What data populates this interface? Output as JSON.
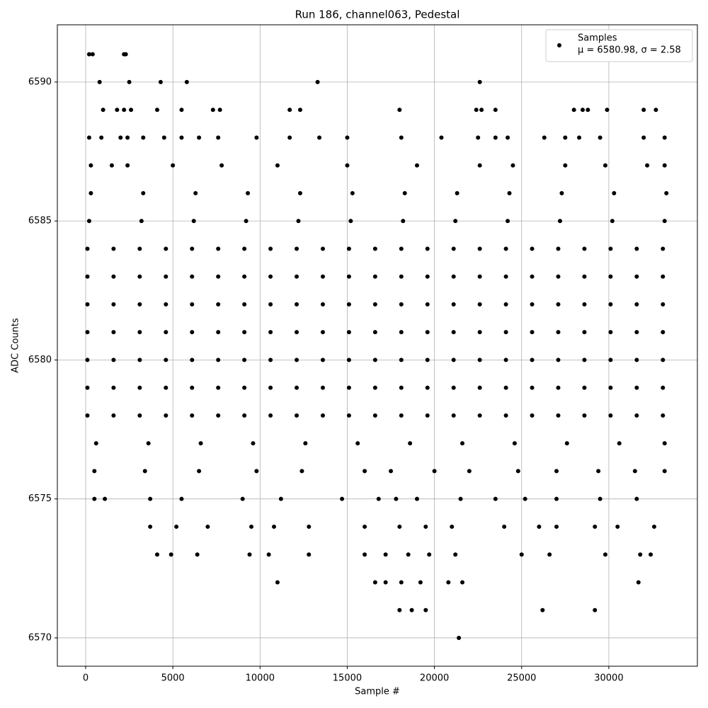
{
  "chart_data": {
    "type": "scatter",
    "title": "Run 186, channel063, Pedestal",
    "x_label": "Sample #",
    "y_label": "ADC Counts",
    "xlim": [
      -1624,
      35078
    ],
    "ylim": [
      6568.98,
      6592.06
    ],
    "xticks": [
      0,
      5000,
      10000,
      15000,
      20000,
      25000,
      30000
    ],
    "yticks": [
      6570,
      6575,
      6580,
      6585,
      6590
    ],
    "grid": true,
    "legend_position": "upper right",
    "legend_note": "μ = 6580.98, σ = 2.58",
    "series": [
      {
        "name": "Samples",
        "color": "#000000",
        "x": [
          100,
          1600,
          3100,
          4600,
          6100,
          7600,
          9100,
          10600,
          12100,
          13600,
          15100,
          16600,
          18100,
          19600,
          21100,
          22600,
          24100,
          25600,
          27100,
          28600,
          30100,
          31600,
          33100,
          100,
          1600,
          3100,
          4600,
          6100,
          7600,
          9100,
          10600,
          12100,
          13600,
          15100,
          16600,
          18100,
          19600,
          21100,
          22600,
          24100,
          25600,
          27100,
          28600,
          30100,
          31600,
          33100,
          100,
          1600,
          3100,
          4600,
          6100,
          7600,
          9100,
          10600,
          12100,
          13600,
          15100,
          16600,
          18100,
          19600,
          21100,
          22600,
          24100,
          25600,
          27100,
          28600,
          30100,
          31600,
          33100,
          100,
          1600,
          3100,
          4600,
          6100,
          7600,
          9100,
          10600,
          12100,
          13600,
          15100,
          16600,
          18100,
          19600,
          21100,
          22600,
          24100,
          25600,
          27100,
          28600,
          30100,
          31600,
          33100,
          100,
          1600,
          3100,
          4600,
          6100,
          7600,
          9100,
          10600,
          12100,
          13600,
          15100,
          16600,
          18100,
          19600,
          21100,
          22600,
          24100,
          25600,
          27100,
          28600,
          30100,
          31600,
          33100,
          100,
          1600,
          3100,
          4600,
          6100,
          7600,
          9100,
          10600,
          12100,
          13600,
          15100,
          16600,
          18100,
          19600,
          21100,
          22600,
          24100,
          25600,
          27100,
          28600,
          30100,
          31600,
          33100,
          100,
          1600,
          3100,
          4600,
          6100,
          7600,
          9100,
          10600,
          12100,
          13600,
          15100,
          16600,
          18100,
          19600,
          21100,
          22600,
          24100,
          25600,
          27100,
          28600,
          30100,
          31600,
          33100,
          200,
          3200,
          6200,
          9200,
          12200,
          15200,
          18200,
          21200,
          24200,
          27200,
          30200,
          33200,
          300,
          3300,
          6300,
          9300,
          12300,
          15300,
          18300,
          21300,
          24300,
          27300,
          30300,
          33300,
          600,
          3600,
          6600,
          9600,
          12600,
          15600,
          18600,
          21600,
          24600,
          27600,
          30600,
          33200,
          300,
          1500,
          2400,
          5000,
          7800,
          11000,
          15000,
          19000,
          22600,
          24500,
          27500,
          29800,
          32200,
          33200,
          500,
          3400,
          6500,
          9800,
          12400,
          16000,
          17500,
          20000,
          22000,
          24800,
          27000,
          29400,
          31500,
          33200,
          500,
          1100,
          3700,
          5500,
          9000,
          11200,
          14700,
          16800,
          17800,
          19000,
          21500,
          23500,
          25200,
          27000,
          29500,
          31600,
          3700,
          5200,
          7000,
          9500,
          10800,
          12800,
          16000,
          18000,
          19500,
          21000,
          24000,
          26000,
          27000,
          29200,
          30500,
          32600,
          4100,
          4900,
          6400,
          9400,
          10500,
          12800,
          16000,
          17200,
          18500,
          19700,
          21200,
          25000,
          26600,
          29800,
          31800,
          32400,
          11000,
          16600,
          17200,
          18100,
          19200,
          20800,
          21600,
          31700,
          18000,
          18700,
          19500,
          26200,
          29200,
          21400,
          200,
          900,
          2000,
          2400,
          3300,
          4500,
          5500,
          6500,
          7600,
          9800,
          11700,
          13400,
          15000,
          18100,
          20400,
          22500,
          23500,
          24200,
          26300,
          27500,
          28300,
          29500,
          32000,
          33200,
          1000,
          1800,
          2200,
          2600,
          4100,
          5500,
          7300,
          7700,
          11700,
          12300,
          18000,
          22400,
          22700,
          23500,
          28000,
          28500,
          28800,
          29900,
          32000,
          32700,
          800,
          2500,
          4300,
          5800,
          13300,
          22600,
          200,
          400,
          2200,
          2300
        ],
        "values": [
          6584,
          6584,
          6584,
          6584,
          6584,
          6584,
          6584,
          6584,
          6584,
          6584,
          6584,
          6584,
          6584,
          6584,
          6584,
          6584,
          6584,
          6584,
          6584,
          6584,
          6584,
          6584,
          6584,
          6583,
          6583,
          6583,
          6583,
          6583,
          6583,
          6583,
          6583,
          6583,
          6583,
          6583,
          6583,
          6583,
          6583,
          6583,
          6583,
          6583,
          6583,
          6583,
          6583,
          6583,
          6583,
          6583,
          6582,
          6582,
          6582,
          6582,
          6582,
          6582,
          6582,
          6582,
          6582,
          6582,
          6582,
          6582,
          6582,
          6582,
          6582,
          6582,
          6582,
          6582,
          6582,
          6582,
          6582,
          6582,
          6582,
          6581,
          6581,
          6581,
          6581,
          6581,
          6581,
          6581,
          6581,
          6581,
          6581,
          6581,
          6581,
          6581,
          6581,
          6581,
          6581,
          6581,
          6581,
          6581,
          6581,
          6581,
          6581,
          6581,
          6580,
          6580,
          6580,
          6580,
          6580,
          6580,
          6580,
          6580,
          6580,
          6580,
          6580,
          6580,
          6580,
          6580,
          6580,
          6580,
          6580,
          6580,
          6580,
          6580,
          6580,
          6580,
          6580,
          6579,
          6579,
          6579,
          6579,
          6579,
          6579,
          6579,
          6579,
          6579,
          6579,
          6579,
          6579,
          6579,
          6579,
          6579,
          6579,
          6579,
          6579,
          6579,
          6579,
          6579,
          6579,
          6579,
          6578,
          6578,
          6578,
          6578,
          6578,
          6578,
          6578,
          6578,
          6578,
          6578,
          6578,
          6578,
          6578,
          6578,
          6578,
          6578,
          6578,
          6578,
          6578,
          6578,
          6578,
          6578,
          6578,
          6585,
          6585,
          6585,
          6585,
          6585,
          6585,
          6585,
          6585,
          6585,
          6585,
          6585,
          6585,
          6586,
          6586,
          6586,
          6586,
          6586,
          6586,
          6586,
          6586,
          6586,
          6586,
          6586,
          6586,
          6577,
          6577,
          6577,
          6577,
          6577,
          6577,
          6577,
          6577,
          6577,
          6577,
          6577,
          6577,
          6587,
          6587,
          6587,
          6587,
          6587,
          6587,
          6587,
          6587,
          6587,
          6587,
          6587,
          6587,
          6587,
          6587,
          6576,
          6576,
          6576,
          6576,
          6576,
          6576,
          6576,
          6576,
          6576,
          6576,
          6576,
          6576,
          6576,
          6576,
          6575,
          6575,
          6575,
          6575,
          6575,
          6575,
          6575,
          6575,
          6575,
          6575,
          6575,
          6575,
          6575,
          6575,
          6575,
          6575,
          6574,
          6574,
          6574,
          6574,
          6574,
          6574,
          6574,
          6574,
          6574,
          6574,
          6574,
          6574,
          6574,
          6574,
          6574,
          6574,
          6573,
          6573,
          6573,
          6573,
          6573,
          6573,
          6573,
          6573,
          6573,
          6573,
          6573,
          6573,
          6573,
          6573,
          6573,
          6573,
          6572,
          6572,
          6572,
          6572,
          6572,
          6572,
          6572,
          6572,
          6571,
          6571,
          6571,
          6571,
          6571,
          6570,
          6588,
          6588,
          6588,
          6588,
          6588,
          6588,
          6588,
          6588,
          6588,
          6588,
          6588,
          6588,
          6588,
          6588,
          6588,
          6588,
          6588,
          6588,
          6588,
          6588,
          6588,
          6588,
          6588,
          6588,
          6589,
          6589,
          6589,
          6589,
          6589,
          6589,
          6589,
          6589,
          6589,
          6589,
          6589,
          6589,
          6589,
          6589,
          6589,
          6589,
          6589,
          6589,
          6589,
          6589,
          6590,
          6590,
          6590,
          6590,
          6590,
          6590,
          6591,
          6591,
          6591,
          6591
        ]
      }
    ]
  }
}
